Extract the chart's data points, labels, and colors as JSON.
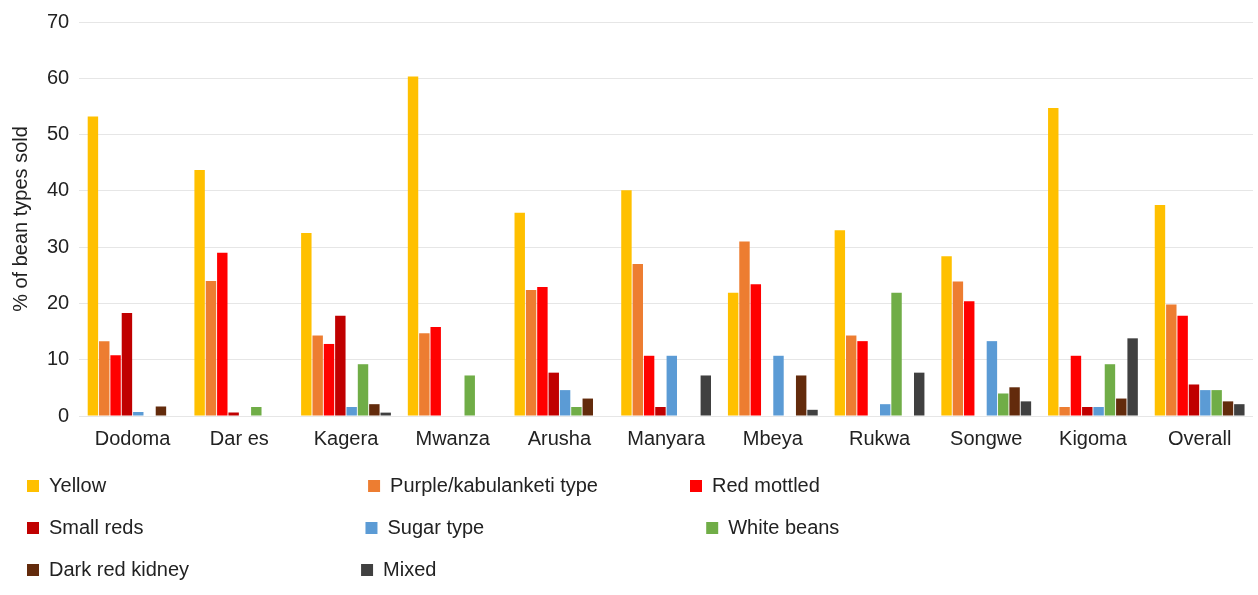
{
  "chart_data": {
    "type": "bar",
    "ylabel": "% of bean types sold",
    "categories": [
      "Dodoma",
      "Dar es",
      "Kagera",
      "Mwanza",
      "Arusha",
      "Manyara",
      "Mbeya",
      "Rukwa",
      "Songwe",
      "Kigoma",
      "Overall"
    ],
    "series": [
      {
        "name": "Yellow",
        "color": "#ffc000",
        "values": [
          53.2,
          43.7,
          32.5,
          60.3,
          36.1,
          40.1,
          21.9,
          33.0,
          28.4,
          54.7,
          37.5
        ]
      },
      {
        "name": "Purple/kabulanketi type",
        "color": "#ed7d31",
        "values": [
          13.3,
          24.0,
          14.3,
          14.7,
          22.4,
          27.0,
          31.0,
          14.3,
          23.9,
          1.6,
          19.8
        ]
      },
      {
        "name": "Red mottled",
        "color": "#ff0000",
        "values": [
          10.8,
          29.0,
          12.8,
          15.8,
          22.9,
          10.7,
          23.4,
          13.3,
          20.4,
          10.7,
          17.8
        ]
      },
      {
        "name": "Small reds",
        "color": "#c00000",
        "values": [
          18.3,
          0.6,
          17.8,
          null,
          7.7,
          1.6,
          null,
          null,
          null,
          1.6,
          5.6
        ]
      },
      {
        "name": "Sugar type",
        "color": "#5b9bd5",
        "values": [
          0.7,
          null,
          1.6,
          null,
          4.6,
          10.7,
          10.7,
          2.1,
          13.3,
          1.6,
          4.6
        ]
      },
      {
        "name": "White beans",
        "color": "#70ad47",
        "values": [
          null,
          1.6,
          9.2,
          7.2,
          1.6,
          null,
          null,
          21.9,
          4.0,
          9.2,
          4.6
        ]
      },
      {
        "name": "Dark red kidney",
        "color": "#632b0c",
        "values": [
          1.7,
          null,
          2.1,
          null,
          3.1,
          null,
          7.2,
          null,
          5.1,
          3.1,
          2.6
        ]
      },
      {
        "name": "Mixed",
        "color": "#404040",
        "values": [
          null,
          null,
          0.6,
          null,
          null,
          7.2,
          1.1,
          7.7,
          2.6,
          13.8,
          2.1
        ]
      }
    ],
    "ylim": [
      0,
      70
    ],
    "yticks": [
      0,
      10,
      20,
      30,
      40,
      50,
      60,
      70
    ],
    "grid": "y",
    "legend": "bottom"
  }
}
